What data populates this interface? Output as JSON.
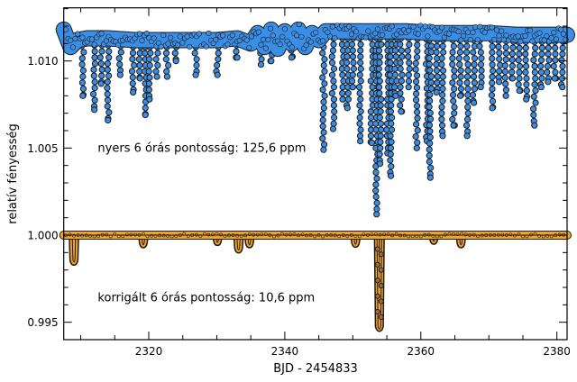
{
  "chart_data": {
    "type": "scatter",
    "title": "",
    "xlabel": "BJD - 2454833",
    "ylabel": "relatív fényesség",
    "xlim": [
      2307.5,
      2381.5
    ],
    "ylim": [
      0.994,
      1.01305
    ],
    "x_ticks": [
      2320,
      2340,
      2360,
      2380
    ],
    "x_tick_labels": [
      "2320",
      "2340",
      "2360",
      "2380"
    ],
    "x_minor_step": 5,
    "y_ticks": [
      0.995,
      1.0,
      1.005,
      1.01
    ],
    "y_tick_labels": [
      "0.995",
      "1.000",
      "1.005",
      "1.010"
    ],
    "y_minor_step": 0.001,
    "grid": false,
    "annotations": [
      {
        "text": "nyers 6 órás pontosság: 125,6 ppm",
        "x": 2312.5,
        "y": 1.005
      },
      {
        "text": "korrigált 6 órás pontosság: 10,6 ppm",
        "x": 2312.5,
        "y": 0.9964
      }
    ],
    "series": [
      {
        "key": "raw",
        "color": "#3a8ee6",
        "baseline": {
          "x": [
            2307.5,
            2308.5,
            2309.5,
            2311,
            2314,
            2318,
            2322,
            2326,
            2330,
            2333,
            2335,
            2336,
            2337,
            2338,
            2339,
            2340,
            2341,
            2342,
            2343,
            2344,
            2345,
            2346,
            2350,
            2354,
            2358,
            2362,
            2366,
            2370,
            2374,
            2378,
            2381.5
          ],
          "y": [
            1.0118,
            1.0108,
            1.0112,
            1.0113,
            1.0113,
            1.0112,
            1.0112,
            1.0112,
            1.0112,
            1.0113,
            1.011,
            1.0116,
            1.0108,
            1.0118,
            1.0107,
            1.0117,
            1.011,
            1.0118,
            1.0108,
            1.0116,
            1.0112,
            1.0117,
            1.0117,
            1.0117,
            1.0117,
            1.0116,
            1.0116,
            1.0116,
            1.0115,
            1.0115,
            1.0115
          ]
        },
        "dips": [
          [
            2310.3,
            1.008
          ],
          [
            2312.0,
            1.0072
          ],
          [
            2313.0,
            1.0087
          ],
          [
            2314.0,
            1.0066
          ],
          [
            2315.8,
            1.0092
          ],
          [
            2317.7,
            1.0082
          ],
          [
            2318.7,
            1.009
          ],
          [
            2319.5,
            1.0069
          ],
          [
            2320.1,
            1.0078
          ],
          [
            2321.2,
            1.0091
          ],
          [
            2322.7,
            1.0091
          ],
          [
            2324.0,
            1.01
          ],
          [
            2326.9,
            1.0092
          ],
          [
            2330.1,
            1.0092
          ],
          [
            2333.0,
            1.0102
          ],
          [
            2336.5,
            1.0098
          ],
          [
            2338.0,
            1.01
          ],
          [
            2341.0,
            1.0102
          ],
          [
            2345.7,
            1.0049
          ],
          [
            2347.1,
            1.0061
          ],
          [
            2348.5,
            1.0078
          ],
          [
            2349.2,
            1.0073
          ],
          [
            2350.0,
            1.0085
          ],
          [
            2351.1,
            1.0054
          ],
          [
            2352.8,
            1.0053
          ],
          [
            2353.5,
            1.0012
          ],
          [
            2354.0,
            1.0041
          ],
          [
            2355.1,
            1.0047
          ],
          [
            2355.6,
            1.0034
          ],
          [
            2356.3,
            1.008
          ],
          [
            2357.1,
            1.0071
          ],
          [
            2358.2,
            1.0085
          ],
          [
            2359.4,
            1.005
          ],
          [
            2360.9,
            1.0054
          ],
          [
            2361.4,
            1.0033
          ],
          [
            2362.3,
            1.0082
          ],
          [
            2363.2,
            1.0057
          ],
          [
            2364.8,
            1.0063
          ],
          [
            2365.8,
            1.008
          ],
          [
            2366.8,
            1.0057
          ],
          [
            2367.8,
            1.0076
          ],
          [
            2368.8,
            1.0085
          ],
          [
            2370.5,
            1.0073
          ],
          [
            2371.5,
            1.0088
          ],
          [
            2372.5,
            1.008
          ],
          [
            2373.5,
            1.009
          ],
          [
            2374.5,
            1.0083
          ],
          [
            2375.5,
            1.0078
          ],
          [
            2376.7,
            1.0063
          ],
          [
            2377.7,
            1.0085
          ],
          [
            2378.7,
            1.0088
          ],
          [
            2379.7,
            1.009
          ],
          [
            2380.8,
            1.0085
          ]
        ]
      },
      {
        "key": "corrected",
        "color": "#f0a22a",
        "baseline": {
          "x": [
            2307.5,
            2381.5
          ],
          "y": [
            1.0,
            1.0
          ]
        },
        "dips": [
          [
            2309.0,
            0.9985
          ],
          [
            2319.2,
            0.9995
          ],
          [
            2330.1,
            0.99963
          ],
          [
            2333.2,
            0.9992
          ],
          [
            2334.8,
            0.9995
          ],
          [
            2350.4,
            0.99953
          ],
          [
            2353.9,
            0.99467
          ],
          [
            2361.9,
            0.9997
          ],
          [
            2365.9,
            0.9995
          ]
        ]
      }
    ]
  }
}
